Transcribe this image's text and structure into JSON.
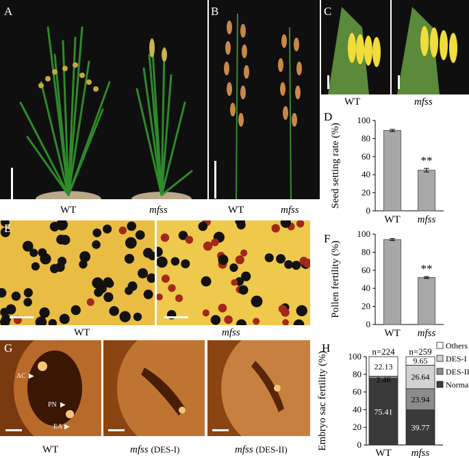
{
  "panels": {
    "A": {
      "label": "A",
      "left": "WT",
      "right": "mfss"
    },
    "B": {
      "label": "B",
      "left": "WT",
      "right": "mfss"
    },
    "C": {
      "label": "C",
      "left": "WT",
      "right": "mfss"
    },
    "D": {
      "label": "D"
    },
    "E": {
      "label": "E",
      "left": "WT",
      "right": "mfss"
    },
    "F": {
      "label": "F"
    },
    "G": {
      "label": "G",
      "left": "WT",
      "middle": "mfss",
      "middle_suffix": "(DES-I)",
      "right": "mfss",
      "right_suffix": "(DES-II)",
      "annotations": [
        "AC",
        "PN",
        "EA"
      ]
    },
    "H": {
      "label": "H"
    }
  },
  "chart_data": [
    {
      "id": "D",
      "type": "bar",
      "categories": [
        "WT",
        "mfss"
      ],
      "values": [
        89,
        45
      ],
      "errors": [
        1.2,
        2
      ],
      "ylabel": "Seed setting rate (%)",
      "ylim": [
        0,
        100
      ],
      "yticks": [
        0,
        20,
        40,
        60,
        80,
        100
      ],
      "significance": [
        "",
        "**"
      ]
    },
    {
      "id": "F",
      "type": "bar",
      "categories": [
        "WT",
        "mfss"
      ],
      "values": [
        94,
        52
      ],
      "errors": [
        1,
        1
      ],
      "ylabel": "Pollen fertility (%)",
      "ylim": [
        0,
        100
      ],
      "yticks": [
        0,
        20,
        40,
        60,
        80,
        100
      ],
      "significance": [
        "",
        "**"
      ]
    },
    {
      "id": "H",
      "type": "bar",
      "stacked": true,
      "categories": [
        "WT",
        "mfss"
      ],
      "counts": [
        "n=224",
        "n=259"
      ],
      "ylabel": "Embryo sac fertility (%)",
      "ylim": [
        0,
        100
      ],
      "yticks": [
        0,
        20,
        40,
        60,
        80,
        100
      ],
      "series": [
        {
          "name": "Normal",
          "color": "#3a3a3a",
          "values": [
            75.41,
            39.77
          ]
        },
        {
          "name": "DES-II",
          "color": "#8c8c8c",
          "values": [
            2.46,
            23.94
          ]
        },
        {
          "name": "DES-I",
          "color": "#d2d2d2",
          "values": [
            0,
            26.64
          ]
        },
        {
          "name": "Others",
          "color": "#ffffff",
          "values": [
            22.13,
            9.65
          ]
        }
      ],
      "segment_labels": [
        [
          "75.41",
          "2.46",
          "",
          "22.13"
        ],
        [
          "39.77",
          "23.94",
          "26.64",
          "9.65"
        ]
      ]
    }
  ]
}
